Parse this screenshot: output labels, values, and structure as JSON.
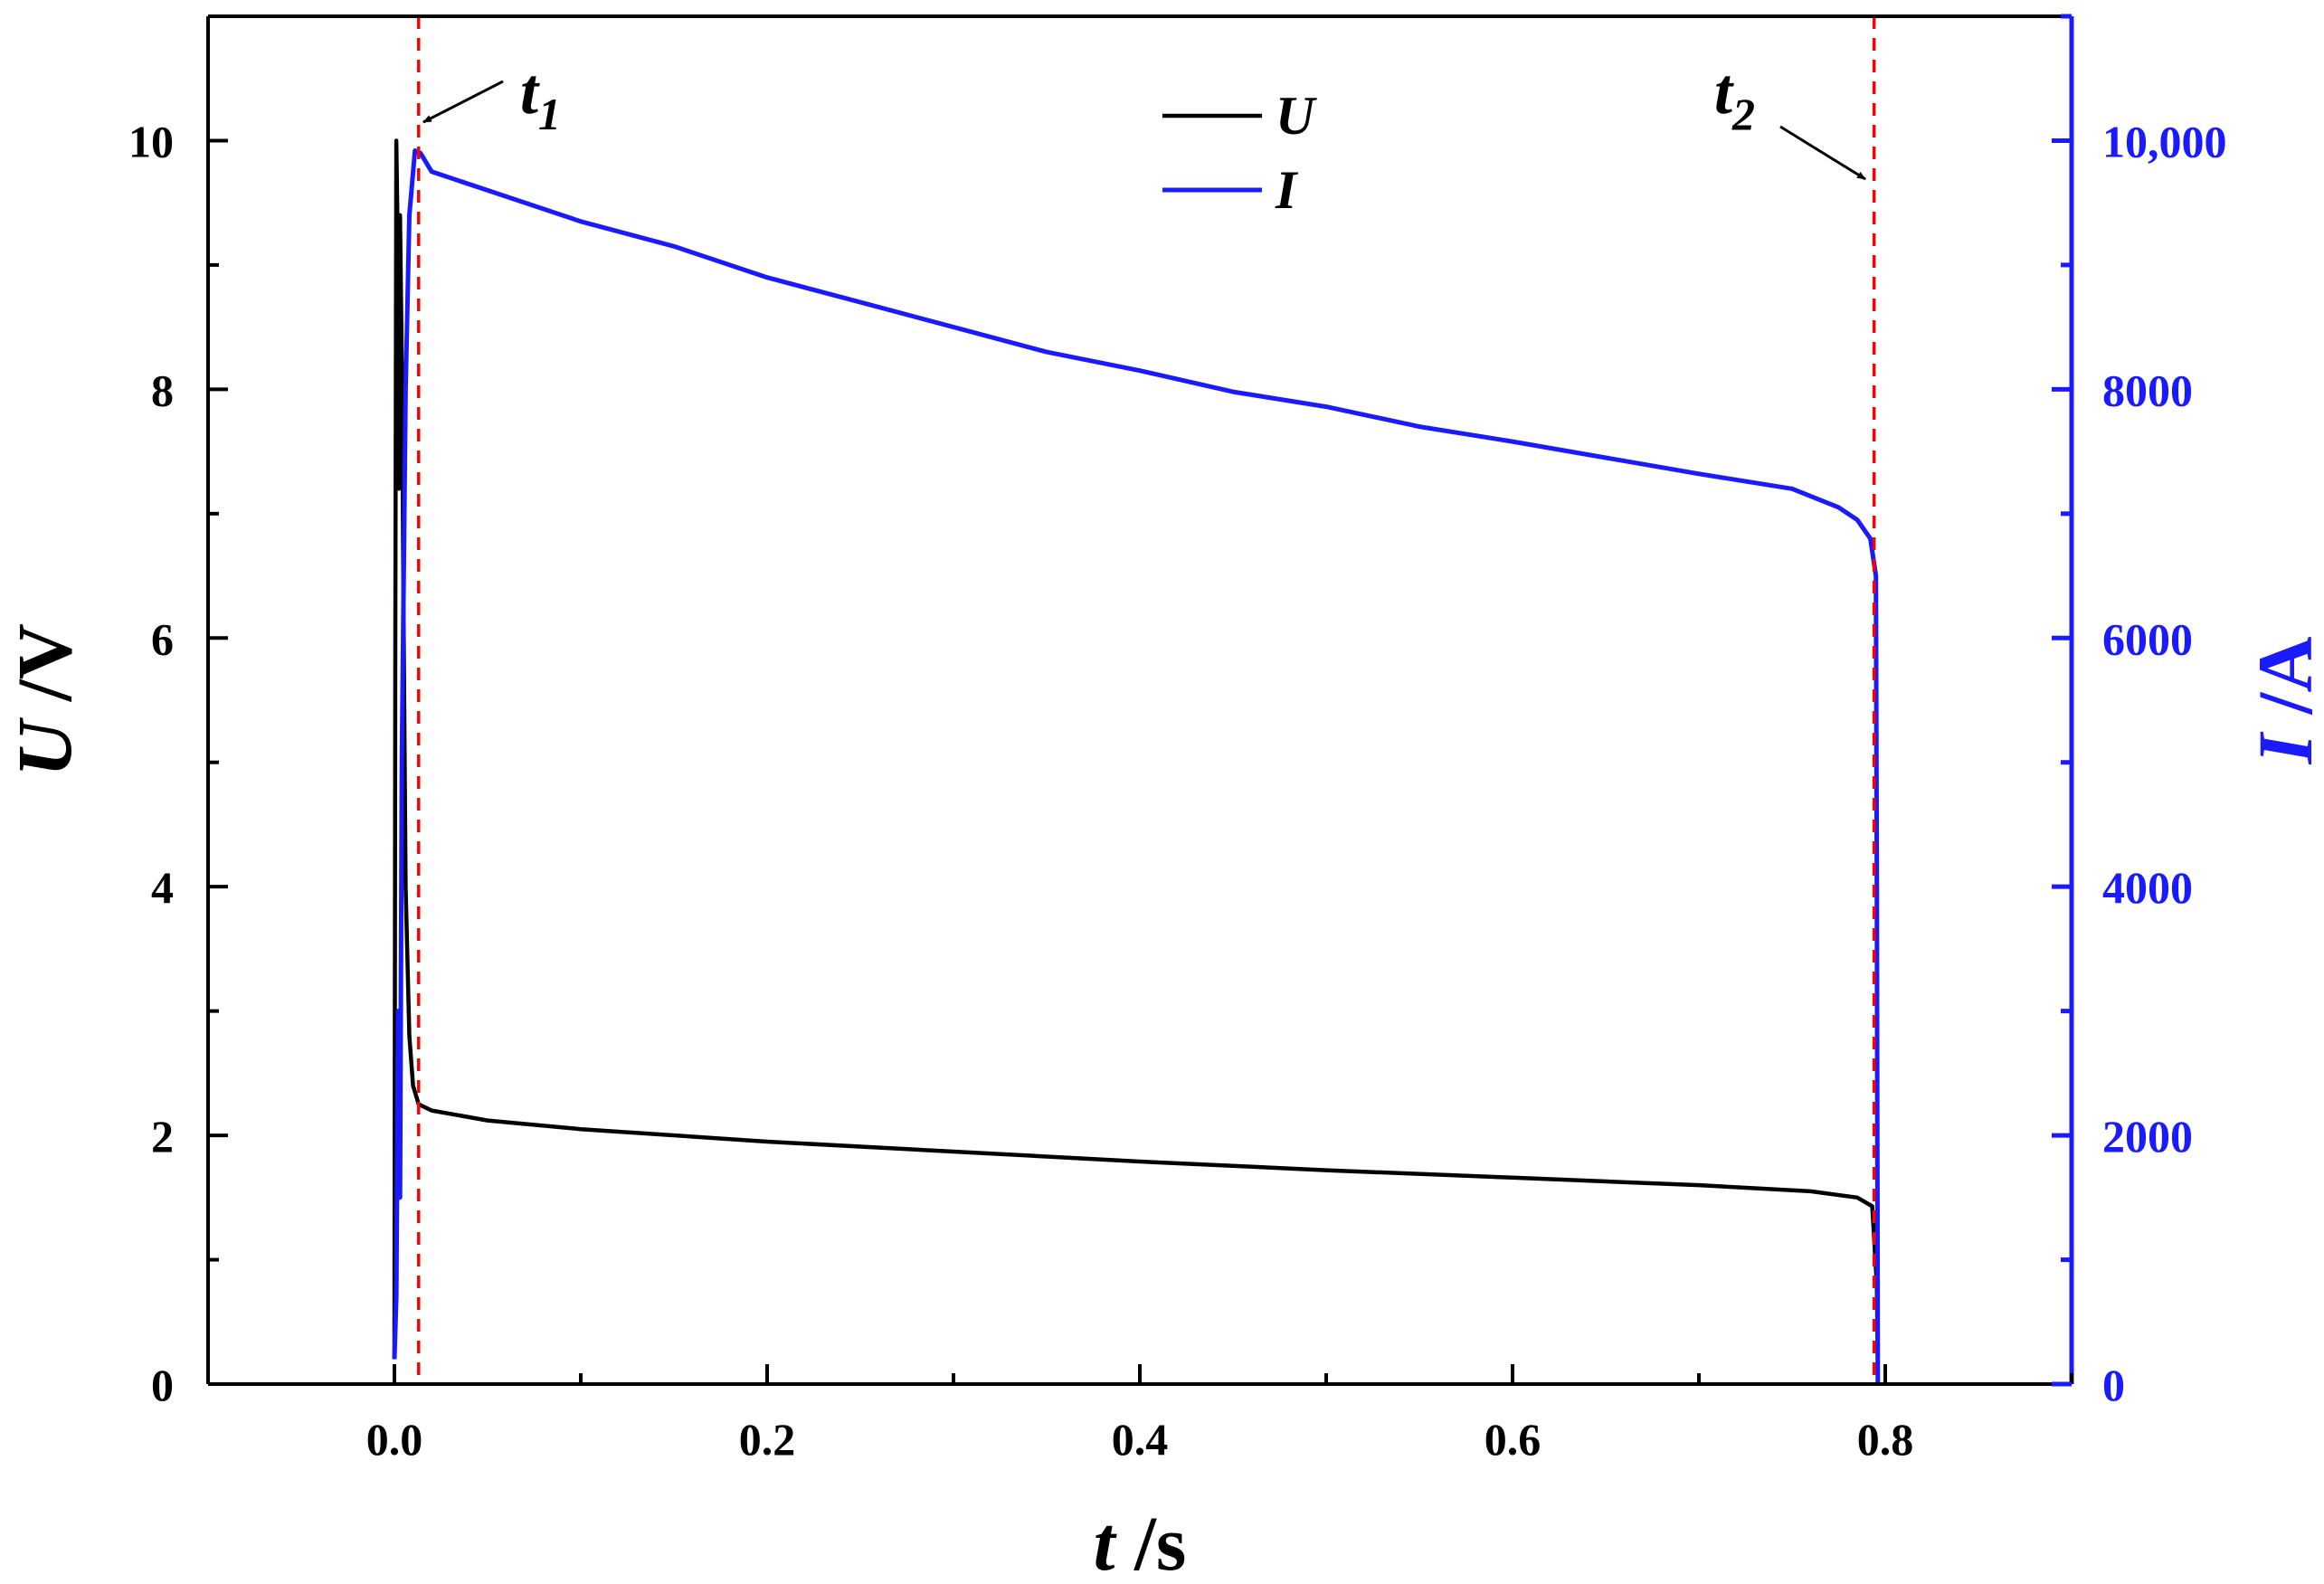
{
  "chart_data": {
    "type": "line",
    "xlabel_var": "t",
    "xlabel_unit": " /s",
    "ylabel_var": "U",
    "ylabel_unit": " /V",
    "y2label_var": "I",
    "y2label_unit": " /A",
    "xlim": [
      -0.1,
      0.9
    ],
    "ylim": [
      0,
      11
    ],
    "y2lim": [
      0,
      11000
    ],
    "x_ticks": [
      0.0,
      0.2,
      0.4,
      0.6,
      0.8
    ],
    "x_tick_labels": [
      "0.0",
      "0.2",
      "0.4",
      "0.6",
      "0.8"
    ],
    "y_ticks": [
      0,
      2,
      4,
      6,
      8,
      10
    ],
    "y_tick_labels": [
      "0",
      "2",
      "4",
      "6",
      "8",
      "10"
    ],
    "y2_ticks": [
      0,
      2000,
      4000,
      6000,
      8000,
      10000
    ],
    "y2_tick_labels": [
      "0",
      "2000",
      "4000",
      "6000",
      "8000",
      "10,000"
    ],
    "grid": false,
    "legend_position": "top-center",
    "series": [
      {
        "name": "U",
        "axis": "left",
        "color": "#000000",
        "points": [
          [
            0.0,
            0.2
          ],
          [
            0.0005,
            6.0
          ],
          [
            0.001,
            10.0
          ],
          [
            0.002,
            9.0
          ],
          [
            0.0025,
            7.2
          ],
          [
            0.003,
            9.4
          ],
          [
            0.004,
            8.2
          ],
          [
            0.005,
            6.0
          ],
          [
            0.006,
            4.0
          ],
          [
            0.008,
            2.8
          ],
          [
            0.01,
            2.4
          ],
          [
            0.013,
            2.25
          ],
          [
            0.02,
            2.2
          ],
          [
            0.05,
            2.12
          ],
          [
            0.1,
            2.05
          ],
          [
            0.2,
            1.95
          ],
          [
            0.3,
            1.87
          ],
          [
            0.4,
            1.79
          ],
          [
            0.5,
            1.72
          ],
          [
            0.6,
            1.66
          ],
          [
            0.7,
            1.6
          ],
          [
            0.76,
            1.55
          ],
          [
            0.785,
            1.5
          ],
          [
            0.793,
            1.43
          ],
          [
            0.7955,
            0.8
          ],
          [
            0.796,
            0.15
          ]
        ]
      },
      {
        "name": "I",
        "axis": "right",
        "color": "#1a1aff",
        "points": [
          [
            0.0,
            200
          ],
          [
            0.001,
            700
          ],
          [
            0.002,
            3000
          ],
          [
            0.003,
            1500
          ],
          [
            0.004,
            5000
          ],
          [
            0.006,
            8000
          ],
          [
            0.008,
            9400
          ],
          [
            0.011,
            9920
          ],
          [
            0.014,
            9900
          ],
          [
            0.02,
            9750
          ],
          [
            0.05,
            9600
          ],
          [
            0.1,
            9350
          ],
          [
            0.15,
            9150
          ],
          [
            0.2,
            8900
          ],
          [
            0.25,
            8700
          ],
          [
            0.3,
            8500
          ],
          [
            0.35,
            8300
          ],
          [
            0.4,
            8150
          ],
          [
            0.45,
            7980
          ],
          [
            0.5,
            7860
          ],
          [
            0.55,
            7700
          ],
          [
            0.6,
            7580
          ],
          [
            0.65,
            7450
          ],
          [
            0.7,
            7320
          ],
          [
            0.75,
            7200
          ],
          [
            0.775,
            7050
          ],
          [
            0.785,
            6950
          ],
          [
            0.792,
            6800
          ],
          [
            0.795,
            6500
          ],
          [
            0.7955,
            4000
          ],
          [
            0.796,
            0
          ]
        ]
      }
    ],
    "markers": [
      {
        "x": 0.013,
        "label": "t",
        "sub": "1",
        "color": "#ff0000"
      },
      {
        "x": 0.794,
        "label": "t",
        "sub": "2",
        "color": "#ff0000"
      }
    ],
    "colors": {
      "left_axis": "#000000",
      "right_axis": "#1a1aff",
      "marker": "#ff0000"
    }
  }
}
